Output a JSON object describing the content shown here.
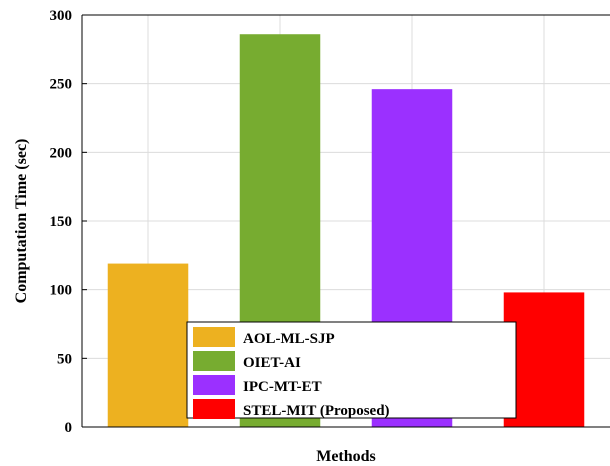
{
  "chart_data": {
    "type": "bar",
    "title": "",
    "xlabel": "Methods",
    "ylabel": "Computation Time (sec)",
    "ylim": [
      0,
      300
    ],
    "yticks": [
      0,
      50,
      100,
      150,
      200,
      250,
      300
    ],
    "grid": true,
    "legend_position": "bottom-center",
    "series": [
      {
        "name": "AOL-ML-SJP",
        "value": 119,
        "color": "#EDB120"
      },
      {
        "name": "OIET-AI",
        "value": 286,
        "color": "#77AC30"
      },
      {
        "name": "IPC-MT-ET",
        "value": 246,
        "color": "#9B30FF"
      },
      {
        "name": "STEL-MIT (Proposed)",
        "value": 98,
        "color": "#FF0000"
      }
    ]
  }
}
